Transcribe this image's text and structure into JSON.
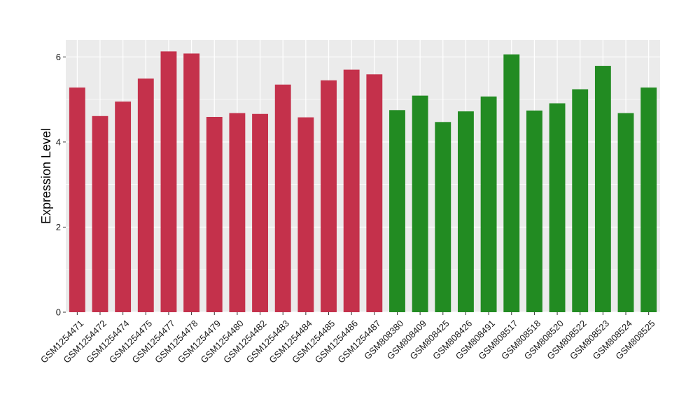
{
  "chart_data": {
    "type": "bar",
    "title": "",
    "xlabel": "",
    "ylabel": "Expression Level",
    "ylim": [
      0,
      6.4
    ],
    "yticks": [
      0,
      2,
      4,
      6
    ],
    "grid": true,
    "legend": "none",
    "categories": [
      "GSM1254471",
      "GSM1254472",
      "GSM1254474",
      "GSM1254475",
      "GSM1254477",
      "GSM1254478",
      "GSM1254479",
      "GSM1254480",
      "GSM1254482",
      "GSM1254483",
      "GSM1254484",
      "GSM1254485",
      "GSM1254486",
      "GSM1254487",
      "GSM808380",
      "GSM808409",
      "GSM808425",
      "GSM808426",
      "GSM808491",
      "GSM808517",
      "GSM808518",
      "GSM808520",
      "GSM808522",
      "GSM808523",
      "GSM808524",
      "GSM808525"
    ],
    "values": [
      5.28,
      4.61,
      4.95,
      5.49,
      6.13,
      6.08,
      4.59,
      4.68,
      4.66,
      5.35,
      4.58,
      5.45,
      5.7,
      5.59,
      4.75,
      5.09,
      4.47,
      4.72,
      5.07,
      6.06,
      4.74,
      4.91,
      5.24,
      5.79,
      4.68,
      5.28
    ],
    "groups": [
      "a",
      "a",
      "a",
      "a",
      "a",
      "a",
      "a",
      "a",
      "a",
      "a",
      "a",
      "a",
      "a",
      "a",
      "b",
      "b",
      "b",
      "b",
      "b",
      "b",
      "b",
      "b",
      "b",
      "b",
      "b",
      "b"
    ],
    "colors": {
      "a": "#c4314b",
      "b": "#228b22"
    },
    "panel_background": "#ebebeb",
    "grid_color": "#ffffff"
  }
}
